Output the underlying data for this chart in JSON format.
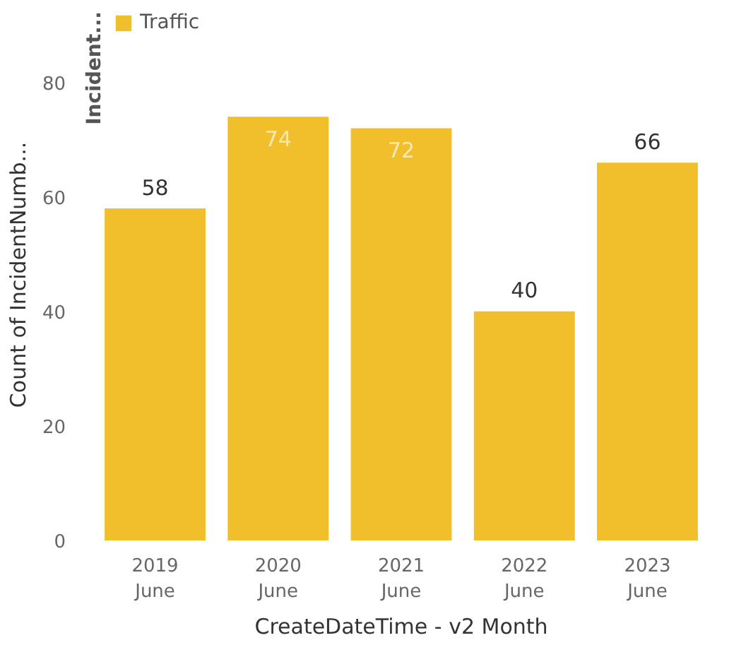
{
  "chart_data": {
    "type": "bar",
    "categories": [
      "2019\nJune",
      "2020\nJune",
      "2021\nJune",
      "2022\nJune",
      "2023\nJune"
    ],
    "series": [
      {
        "name": "Traffic",
        "color": "#f0bf2b",
        "values": [
          58,
          74,
          72,
          40,
          66
        ]
      }
    ],
    "legend_title": "Incident...",
    "legend": "top left",
    "xlabel": "CreateDateTime - v2 Month",
    "ylabel": "Count of IncidentNumb...",
    "ylim": [
      0,
      80
    ],
    "yticks": [
      0,
      20,
      40,
      60,
      80
    ],
    "grid": false,
    "data_labels": true
  }
}
